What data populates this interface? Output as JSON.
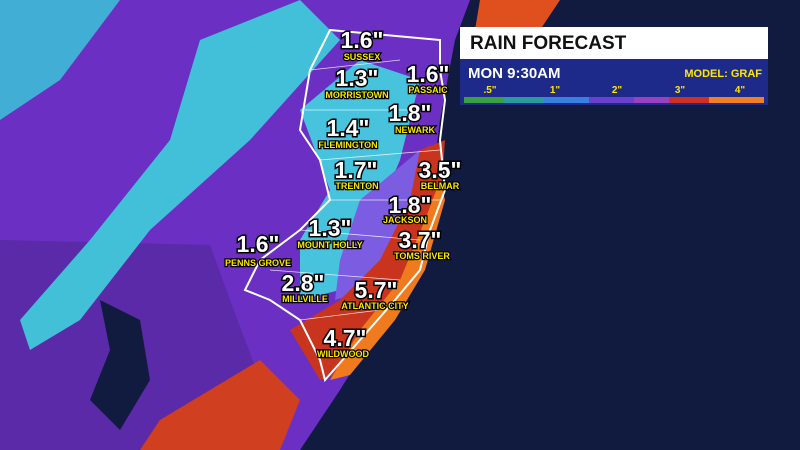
{
  "legend": {
    "title": "RAIN FORECAST",
    "time": "MON 9:30AM",
    "model": "MODEL: GRAF",
    "scale": [
      ".5\"",
      "1\"",
      "2\"",
      "3\"",
      "4\""
    ]
  },
  "cities": [
    {
      "name": "SUSSEX",
      "amount": "1.6\""
    },
    {
      "name": "MORRISTOWN",
      "amount": "1.3\""
    },
    {
      "name": "PASSAIC",
      "amount": "1.6\""
    },
    {
      "name": "NEWARK",
      "amount": "1.8\""
    },
    {
      "name": "FLEMINGTON",
      "amount": "1.4\""
    },
    {
      "name": "TRENTON",
      "amount": "1.7\""
    },
    {
      "name": "BELMAR",
      "amount": "3.5\""
    },
    {
      "name": "JACKSON",
      "amount": "1.8\""
    },
    {
      "name": "MOUNT HOLLY",
      "amount": "1.3\""
    },
    {
      "name": "TOMS RIVER",
      "amount": "3.7\""
    },
    {
      "name": "PENNS GROVE",
      "amount": "1.6\""
    },
    {
      "name": "MILLVILLE",
      "amount": "2.8\""
    },
    {
      "name": "ATLANTIC CITY",
      "amount": "5.7\""
    },
    {
      "name": "WILDWOOD",
      "amount": "4.7\""
    }
  ]
}
